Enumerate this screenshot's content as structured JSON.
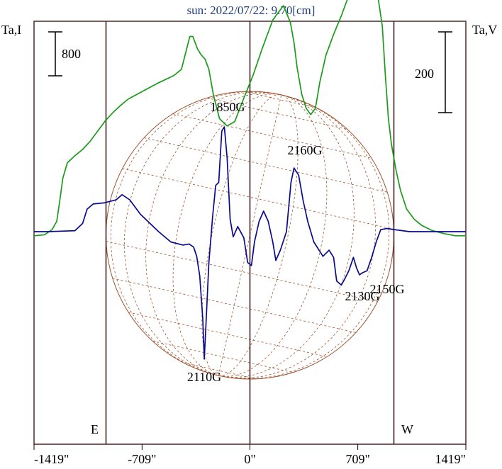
{
  "chart_data": {
    "type": "line",
    "title": "sun: 2022/07/22: 9.70[cm]",
    "left_axis_label": "Ta,I",
    "right_axis_label": "Ta,V",
    "scale_bars": {
      "left": "800",
      "right": "200"
    },
    "x_ticks": [
      "-1419\"",
      "-709\"",
      "0\"",
      "709\"",
      "1419\""
    ],
    "x_tick_values": [
      -1419,
      -709,
      0,
      709,
      1419
    ],
    "xlim": [
      -1419,
      1419
    ],
    "direction_labels": {
      "east": "E",
      "west": "W"
    },
    "limb_positions": [
      -946,
      946
    ],
    "center_position": 0,
    "solar_radius": 946,
    "colors": {
      "stokes_i": "#1a9c1a",
      "stokes_v": "#0a0a8c",
      "grid": "#a0522d",
      "frame": "#4a2a2a",
      "title": "#1f3c7a"
    },
    "active_regions": [
      {
        "label": "1850G",
        "x": -330
      },
      {
        "label": "2160G",
        "x": 300
      },
      {
        "label": "2110G",
        "x": -230
      },
      {
        "label": "2130G",
        "x": 880
      },
      {
        "label": "2150G",
        "x": 1020
      }
    ],
    "series": [
      {
        "key": "stokes_i",
        "curve": [
          [
            -1419,
            -0.04
          ],
          [
            -1350,
            -0.03
          ],
          [
            -1300,
            0.02
          ],
          [
            -1270,
            0.1
          ],
          [
            -1250,
            0.3
          ],
          [
            -1230,
            0.52
          ],
          [
            -1200,
            0.67
          ],
          [
            -1150,
            0.74
          ],
          [
            -1100,
            0.8
          ],
          [
            -1050,
            0.88
          ],
          [
            -1000,
            0.98
          ],
          [
            -950,
            1.08
          ],
          [
            -900,
            1.16
          ],
          [
            -850,
            1.23
          ],
          [
            -800,
            1.29
          ],
          [
            -700,
            1.37
          ],
          [
            -600,
            1.45
          ],
          [
            -500,
            1.52
          ],
          [
            -450,
            1.58
          ],
          [
            -395,
            1.9
          ],
          [
            -375,
            1.9
          ],
          [
            -345,
            1.78
          ],
          [
            -320,
            1.72
          ],
          [
            -295,
            1.68
          ],
          [
            -270,
            1.58
          ],
          [
            -240,
            1.33
          ],
          [
            -200,
            1.1
          ],
          [
            -150,
            1.03
          ],
          [
            -100,
            1.07
          ],
          [
            -40,
            1.3
          ],
          [
            20,
            1.52
          ],
          [
            80,
            1.78
          ],
          [
            150,
            2.06
          ],
          [
            220,
            2.2
          ],
          [
            265,
            2.04
          ],
          [
            290,
            1.84
          ],
          [
            310,
            1.6
          ],
          [
            340,
            1.34
          ],
          [
            370,
            1.2
          ],
          [
            400,
            1.14
          ],
          [
            430,
            1.2
          ],
          [
            460,
            1.46
          ],
          [
            500,
            1.72
          ],
          [
            550,
            1.92
          ],
          [
            600,
            2.1
          ],
          [
            650,
            2.3
          ],
          [
            700,
            2.52
          ],
          [
            740,
            2.56
          ],
          [
            790,
            2.58
          ],
          [
            810,
            2.54
          ],
          [
            840,
            2.3
          ],
          [
            870,
            2.0
          ],
          [
            890,
            1.52
          ],
          [
            910,
            1.1
          ],
          [
            930,
            0.85
          ],
          [
            960,
            0.6
          ],
          [
            990,
            0.4
          ],
          [
            1030,
            0.22
          ],
          [
            1080,
            0.12
          ],
          [
            1130,
            0.06
          ],
          [
            1200,
            0.01
          ],
          [
            1280,
            -0.02
          ],
          [
            1350,
            -0.04
          ],
          [
            1419,
            -0.04
          ]
        ]
      },
      {
        "key": "stokes_v",
        "curve": [
          [
            -1419,
            0.0
          ],
          [
            -1330,
            0.0
          ],
          [
            -1240,
            0.005
          ],
          [
            -1150,
            0.01
          ],
          [
            -1100,
            0.08
          ],
          [
            -1070,
            0.22
          ],
          [
            -1030,
            0.27
          ],
          [
            -960,
            0.28
          ],
          [
            -880,
            0.31
          ],
          [
            -840,
            0.36
          ],
          [
            -790,
            0.31
          ],
          [
            -720,
            0.17
          ],
          [
            -600,
            0.0
          ],
          [
            -520,
            -0.1
          ],
          [
            -440,
            -0.13
          ],
          [
            -400,
            -0.12
          ],
          [
            -370,
            -0.15
          ],
          [
            -350,
            -0.24
          ],
          [
            -330,
            -0.43
          ],
          [
            -310,
            -0.85
          ],
          [
            -300,
            -1.24
          ],
          [
            -290,
            -0.93
          ],
          [
            -270,
            -0.3
          ],
          [
            -245,
            0.15
          ],
          [
            -225,
            0.45
          ],
          [
            -205,
            0.48
          ],
          [
            -185,
            0.98
          ],
          [
            -168,
            1.02
          ],
          [
            -150,
            0.72
          ],
          [
            -130,
            0.12
          ],
          [
            -110,
            -0.05
          ],
          [
            -80,
            0.05
          ],
          [
            -40,
            -0.06
          ],
          [
            -15,
            -0.3
          ],
          [
            10,
            -0.33
          ],
          [
            30,
            -0.1
          ],
          [
            60,
            0.1
          ],
          [
            90,
            0.2
          ],
          [
            120,
            0.1
          ],
          [
            150,
            -0.1
          ],
          [
            170,
            -0.28
          ],
          [
            200,
            -0.18
          ],
          [
            240,
            0.0
          ],
          [
            270,
            0.48
          ],
          [
            290,
            0.62
          ],
          [
            320,
            0.55
          ],
          [
            350,
            0.3
          ],
          [
            380,
            0.1
          ],
          [
            420,
            -0.1
          ],
          [
            480,
            -0.24
          ],
          [
            520,
            -0.18
          ],
          [
            550,
            -0.25
          ],
          [
            570,
            -0.48
          ],
          [
            600,
            -0.52
          ],
          [
            620,
            -0.47
          ],
          [
            650,
            -0.38
          ],
          [
            680,
            -0.25
          ],
          [
            700,
            -0.35
          ],
          [
            720,
            -0.42
          ],
          [
            740,
            -0.4
          ],
          [
            770,
            -0.38
          ],
          [
            800,
            -0.25
          ],
          [
            830,
            -0.1
          ],
          [
            860,
            0.02
          ],
          [
            900,
            0.03
          ],
          [
            950,
            0.02
          ],
          [
            1050,
            0.0
          ],
          [
            1150,
            0.0
          ],
          [
            1300,
            0.0
          ],
          [
            1419,
            0.0
          ]
        ]
      }
    ]
  }
}
